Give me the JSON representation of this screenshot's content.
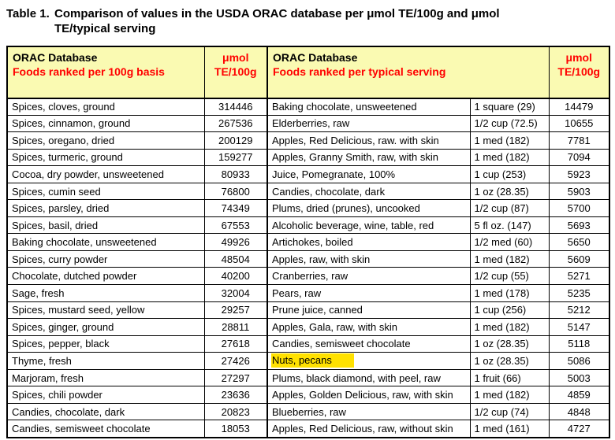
{
  "title": {
    "label": "Table 1.",
    "text": "Comparison of values in the USDA ORAC database per μmol TE/100g and μmol\nTE/typical serving"
  },
  "header": {
    "left_db": "ORAC Database",
    "left_sub": "Foods ranked per 100g basis",
    "right_db": "ORAC Database",
    "right_sub": "Foods ranked per typical serving",
    "unit_line1": "μmol",
    "unit_line2": "TE/100g"
  },
  "colors": {
    "header_bg": "#FAFAB2",
    "accent_red": "#FF0000",
    "highlight": "#FFE100"
  },
  "rows": [
    {
      "left_food": "Spices, cloves, ground",
      "left_value": "314446",
      "right_food": "Baking chocolate, unsweetened",
      "serving": "1 square (29)",
      "right_value": "14479",
      "highlight": false
    },
    {
      "left_food": "Spices, cinnamon, ground",
      "left_value": "267536",
      "right_food": "Elderberries, raw",
      "serving": "1/2 cup (72.5)",
      "right_value": "10655",
      "highlight": false
    },
    {
      "left_food": "Spices, oregano, dried",
      "left_value": "200129",
      "right_food": "Apples, Red Delicious, raw. with skin",
      "serving": "1 med (182)",
      "right_value": "7781",
      "highlight": false
    },
    {
      "left_food": "Spices, turmeric, ground",
      "left_value": "159277",
      "right_food": "Apples, Granny Smith, raw, with skin",
      "serving": "1 med (182)",
      "right_value": "7094",
      "highlight": false
    },
    {
      "left_food": "Cocoa, dry powder, unsweetened",
      "left_value": "80933",
      "right_food": "Juice, Pomegranate, 100%",
      "serving": "1 cup (253)",
      "right_value": "5923",
      "highlight": false
    },
    {
      "left_food": "Spices, cumin seed",
      "left_value": "76800",
      "right_food": "Candies, chocolate, dark",
      "serving": "1 oz (28.35)",
      "right_value": "5903",
      "highlight": false
    },
    {
      "left_food": "Spices, parsley, dried",
      "left_value": "74349",
      "right_food": "Plums, dried (prunes), uncooked",
      "serving": "1/2 cup (87)",
      "right_value": "5700",
      "highlight": false
    },
    {
      "left_food": "Spices, basil, dried",
      "left_value": "67553",
      "right_food": "Alcoholic beverage, wine, table, red",
      "serving": "5 fl oz. (147)",
      "right_value": "5693",
      "highlight": false
    },
    {
      "left_food": "Baking chocolate, unsweetened",
      "left_value": "49926",
      "right_food": "Artichokes, boiled",
      "serving": "1/2 med (60)",
      "right_value": "5650",
      "highlight": false
    },
    {
      "left_food": "Spices, curry powder",
      "left_value": "48504",
      "right_food": "Apples, raw, with skin",
      "serving": "1 med (182)",
      "right_value": "5609",
      "highlight": false
    },
    {
      "left_food": "Chocolate, dutched powder",
      "left_value": "40200",
      "right_food": "Cranberries, raw",
      "serving": "1/2 cup (55)",
      "right_value": "5271",
      "highlight": false
    },
    {
      "left_food": "Sage, fresh",
      "left_value": "32004",
      "right_food": "Pears, raw",
      "serving": "1 med (178)",
      "right_value": "5235",
      "highlight": false
    },
    {
      "left_food": "Spices, mustard seed, yellow",
      "left_value": "29257",
      "right_food": "Prune juice, canned",
      "serving": "1 cup (256)",
      "right_value": "5212",
      "highlight": false
    },
    {
      "left_food": "Spices, ginger, ground",
      "left_value": "28811",
      "right_food": "Apples, Gala, raw, with skin",
      "serving": "1 med (182)",
      "right_value": "5147",
      "highlight": false
    },
    {
      "left_food": "Spices, pepper, black",
      "left_value": "27618",
      "right_food": "Candies, semisweet chocolate",
      "serving": "1 oz (28.35)",
      "right_value": "5118",
      "highlight": false
    },
    {
      "left_food": "Thyme, fresh",
      "left_value": "27426",
      "right_food": "Nuts, pecans",
      "serving": "1 oz (28.35)",
      "right_value": "5086",
      "highlight": true
    },
    {
      "left_food": "Marjoram, fresh",
      "left_value": "27297",
      "right_food": "Plums, black diamond, with peel, raw",
      "serving": "1 fruit (66)",
      "right_value": "5003",
      "highlight": false
    },
    {
      "left_food": "Spices, chili powder",
      "left_value": "23636",
      "right_food": "Apples, Golden Delicious, raw, with skin",
      "serving": "1 med (182)",
      "right_value": "4859",
      "highlight": false
    },
    {
      "left_food": "Candies, chocolate, dark",
      "left_value": "20823",
      "right_food": "Blueberries, raw",
      "serving": "1/2 cup (74)",
      "right_value": "4848",
      "highlight": false
    },
    {
      "left_food": "Candies, semisweet chocolate",
      "left_value": "18053",
      "right_food": "Apples, Red Delicious, raw, without skin",
      "serving": "1 med (161)",
      "right_value": "4727",
      "highlight": false
    }
  ]
}
